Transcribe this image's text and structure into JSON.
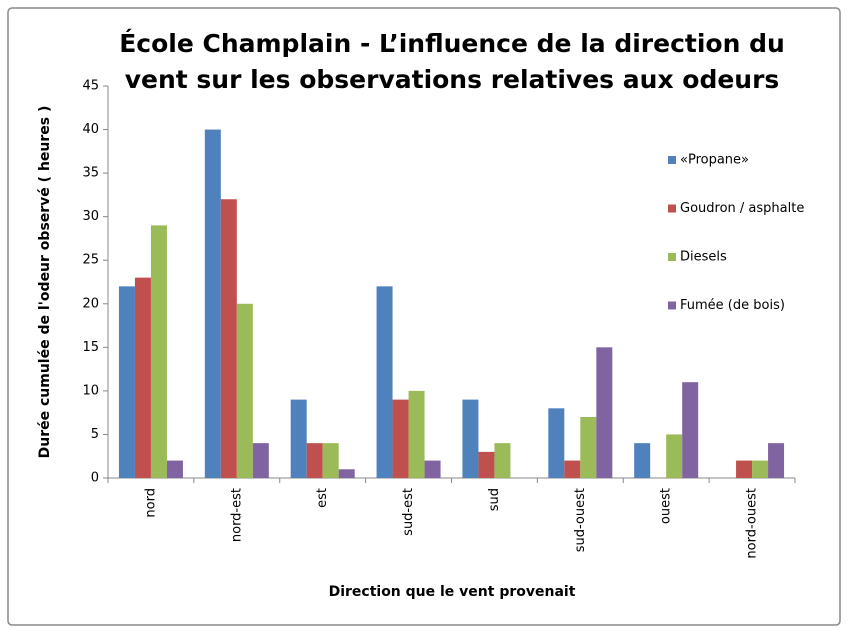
{
  "chart_data": {
    "type": "bar",
    "title": [
      "École Champlain - L’influence de la direction du",
      "vent sur les observations relatives aux odeurs"
    ],
    "x_label": "Direction que le vent provenait",
    "y_label": "Durée cumulée de l'odeur observé ( heures )",
    "categories": [
      "nord",
      "nord-est",
      "est",
      "sud-est",
      "sud",
      "sud-ouest",
      "ouest",
      "nord-ouest"
    ],
    "series": [
      {
        "name": "«Propane»",
        "color": "#4f81bd",
        "values": [
          22,
          40,
          9,
          22,
          9,
          8,
          4,
          0
        ]
      },
      {
        "name": "Goudron / asphalte",
        "color": "#c0504d",
        "values": [
          23,
          32,
          4,
          9,
          3,
          2,
          0,
          2
        ]
      },
      {
        "name": "Diesels",
        "color": "#9bbb59",
        "values": [
          29,
          20,
          4,
          10,
          4,
          7,
          5,
          2
        ]
      },
      {
        "name": "Fumée (de bois)",
        "color": "#8064a2",
        "values": [
          2,
          4,
          1,
          2,
          0,
          15,
          11,
          4
        ]
      }
    ],
    "ylim": [
      0,
      45
    ],
    "yticks": [
      0,
      5,
      10,
      15,
      20,
      25,
      30,
      35,
      40,
      45
    ],
    "grid": false,
    "legend": "right"
  }
}
